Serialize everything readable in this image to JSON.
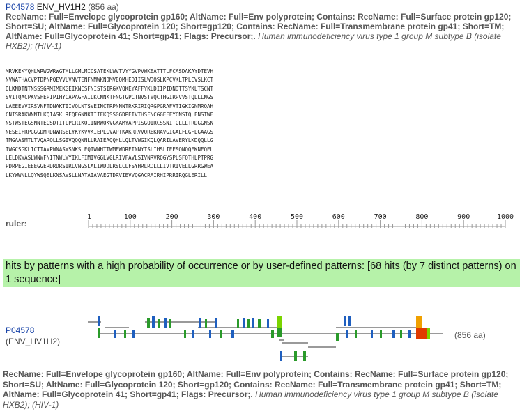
{
  "entry": {
    "accession": "P04578",
    "name": "ENV_HV1H2",
    "length_text": "(856 aa)",
    "description": "RecName: Full=Envelope glycoprotein gp160; AltName: Full=Env polyprotein; Contains: RecName: Full=Surface protein gp120; Short=SU; AltName: Full=Glycoprotein 120; Short=gp120; Contains: RecName: Full=Transmembrane protein gp41; Short=TM; AltName: Full=Glycoprotein 41; Short=gp41; Flags: Precursor;.",
    "organism": "Human immunodeficiency virus type 1 group M subtype B (isolate HXB2); (HIV-1)"
  },
  "sequence_lines": [
    "MRVKEKYQHLWRWGWRWGTMLLGMLMICSATEKLWVTVYYGVPVWKEATTTLFCASDAKAYDTEVH",
    "NVWATHACVPTDPNPQEVVLVNVTENFNMWKNDMVEQMHEDIISLWDQSLKPCVKLTPLCVSLKCT",
    "DLKNDTNTNSSSGRMIMEKGEIKNCSFNISTSIRGKVQKEYAFFYKLDIIPIDNDTTSYKLTSCNT",
    "SVITQACPKVSFEPIPIHYCAPAGFAILKCNNKTFNGTGPCTNVSTVQCTHGIRPVVSTQLLLNGS",
    "LAEEEVVIRSVNFTDNAKTIIVQLNTSVEINCTRPNNNTRKRIRIQRGPGRAFVTIGKIGNMRQAH",
    "CNISRAKWNNTLKQIASKLREQFGNNKTIIFKQSSGGDPEIVTHSFNCGGEFFYCNSTQLFNSTWF",
    "NSTWSTEGSNNTEGSDTITLPCRIKQIINMWQKVGKAMYAPPISGQIRCSSNITGLLLTRDGGNSN",
    "NESEIFRPGGGDMRDNWRSELYKYKVVKIEPLGVAPTKAKRRVVQREKRAVGIGALFLGFLGAAGS",
    "TMGAASMTLTVQARQLLSGIVQQQNNLLRAIEAQQHLLQLTVWGIKQLQARILAVERYLKDQQLLG",
    "IWGCSGKLICTTAVPWNASWSNKSLEQIWNHTTWMEWDREINNYTSLIHSLIEESQNQQEKNEQEL",
    "LELDKWASLWNWFNITNWLWYIKLFIMIVGGLVGLRIVFAVLSIVNRVRQGYSPLSFQTHLPTPRG",
    "PDRPEGIEEEGGERDRDRSIRLVNGSLALIWDDLRSLCLFSYHRLRDLLLIVTRIVELLGRRGWEA",
    "LKYWWNLLQYWSQELKNSAVSLLNATAIAVAEGTDRVIEVVQGACRAIRHIPRRIRQGLERILL"
  ],
  "ruler": {
    "label": "ruler:",
    "ticks": [
      "1",
      "100",
      "200",
      "300",
      "400",
      "500",
      "600",
      "700",
      "800",
      "900",
      "1000"
    ]
  },
  "hits": {
    "summary": "hits by patterns with a high probability of occurrence or by user-defined patterns: [68 hits (by 7 distinct patterns) on 1 sequence]"
  },
  "graphic": {
    "accession": "P04578",
    "name_text": "(ENV_HV1H2)",
    "length_text": "(856 aa)",
    "colors": {
      "line": "#9a9a9a",
      "blue": "#1f5fbf",
      "green": "#2a9a2a",
      "lime": "#7ad400",
      "red": "#e03a00",
      "orange": "#f0a000"
    }
  }
}
